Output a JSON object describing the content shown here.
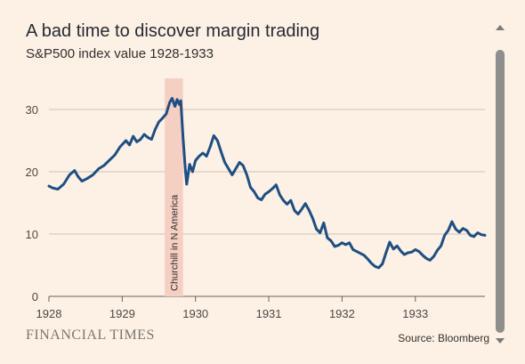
{
  "title": "A bad time to discover margin trading",
  "subtitle": "S&P500 index value 1928-1933",
  "brand": "FINANCIAL TIMES",
  "source": "Source: Bloomberg",
  "colors": {
    "background": "#fdf1e5",
    "line": "#1f4e82",
    "highlight": "#f5cfc2",
    "grid": "#c9c2bb"
  },
  "chart_data": {
    "type": "line",
    "title": "A bad time to discover margin trading",
    "subtitle": "S&P500 index value 1928-1933",
    "xlabel": "",
    "ylabel": "",
    "xlim": [
      1928.0,
      1933.95
    ],
    "ylim": [
      0,
      35
    ],
    "x_ticks": [
      "1928",
      "1929",
      "1930",
      "1931",
      "1932",
      "1933"
    ],
    "x_tick_values": [
      1928,
      1929,
      1930,
      1931,
      1932,
      1933
    ],
    "y_ticks": [
      "0",
      "10",
      "20",
      "30"
    ],
    "y_tick_values": [
      0,
      10,
      20,
      30
    ],
    "grid": true,
    "highlight": {
      "x0": 1929.58,
      "x1": 1929.83,
      "label": "Churchill in N America"
    },
    "series": [
      {
        "x": [
          1928.0,
          1928.05,
          1928.12,
          1928.2,
          1928.28,
          1928.35,
          1928.4,
          1928.45,
          1928.52,
          1928.6,
          1928.68,
          1928.75,
          1928.82,
          1928.9,
          1928.97,
          1929.05,
          1929.1,
          1929.15,
          1929.2,
          1929.25,
          1929.3,
          1929.35,
          1929.4,
          1929.45,
          1929.5,
          1929.55,
          1929.6,
          1929.65,
          1929.68,
          1929.72,
          1929.75,
          1929.78,
          1929.8,
          1929.83,
          1929.86,
          1929.88,
          1929.92,
          1929.96,
          1930.0,
          1930.05,
          1930.1,
          1930.15,
          1930.2,
          1930.25,
          1930.3,
          1930.35,
          1930.4,
          1930.45,
          1930.5,
          1930.55,
          1930.6,
          1930.65,
          1930.7,
          1930.75,
          1930.8,
          1930.85,
          1930.9,
          1930.95,
          1931.0,
          1931.05,
          1931.1,
          1931.15,
          1931.2,
          1931.25,
          1931.3,
          1931.35,
          1931.4,
          1931.45,
          1931.5,
          1931.55,
          1931.6,
          1931.65,
          1931.7,
          1931.75,
          1931.8,
          1931.85,
          1931.9,
          1931.95,
          1932.0,
          1932.05,
          1932.1,
          1932.15,
          1932.2,
          1932.25,
          1932.3,
          1932.35,
          1932.4,
          1932.45,
          1932.5,
          1932.55,
          1932.6,
          1932.65,
          1932.7,
          1932.75,
          1932.8,
          1932.85,
          1932.9,
          1932.95,
          1933.0,
          1933.05,
          1933.1,
          1933.15,
          1933.2,
          1933.25,
          1933.3,
          1933.35,
          1933.4,
          1933.45,
          1933.5,
          1933.55,
          1933.6,
          1933.65,
          1933.7,
          1933.75,
          1933.8,
          1933.85,
          1933.9,
          1933.95
        ],
        "values": [
          17.7,
          17.4,
          17.2,
          18.0,
          19.5,
          20.2,
          19.2,
          18.5,
          18.9,
          19.5,
          20.5,
          21.0,
          21.8,
          22.7,
          24.0,
          25.0,
          24.3,
          25.7,
          24.8,
          25.2,
          26.0,
          25.5,
          25.2,
          26.8,
          28.0,
          28.6,
          29.3,
          31.2,
          31.8,
          30.5,
          31.6,
          30.8,
          31.4,
          25.5,
          20.5,
          18.0,
          21.2,
          20.0,
          21.8,
          22.5,
          23.0,
          22.5,
          24.0,
          25.8,
          25.0,
          23.2,
          21.5,
          20.5,
          19.5,
          20.5,
          21.5,
          21.0,
          19.5,
          17.5,
          16.8,
          15.8,
          15.5,
          16.4,
          16.8,
          17.3,
          17.9,
          16.3,
          15.4,
          14.8,
          15.4,
          13.8,
          13.2,
          14.0,
          14.9,
          13.8,
          12.5,
          10.8,
          10.2,
          11.8,
          9.4,
          8.9,
          8.0,
          8.2,
          8.6,
          8.3,
          8.6,
          7.5,
          7.2,
          6.9,
          6.6,
          6.0,
          5.3,
          4.8,
          4.6,
          5.2,
          7.0,
          8.7,
          7.6,
          8.1,
          7.3,
          6.7,
          7.0,
          7.1,
          7.5,
          7.2,
          6.6,
          6.1,
          5.8,
          6.4,
          7.4,
          8.1,
          9.8,
          10.6,
          12.0,
          10.8,
          10.3,
          10.9,
          10.6,
          9.8,
          9.6,
          10.2,
          9.9,
          9.8
        ]
      }
    ]
  }
}
